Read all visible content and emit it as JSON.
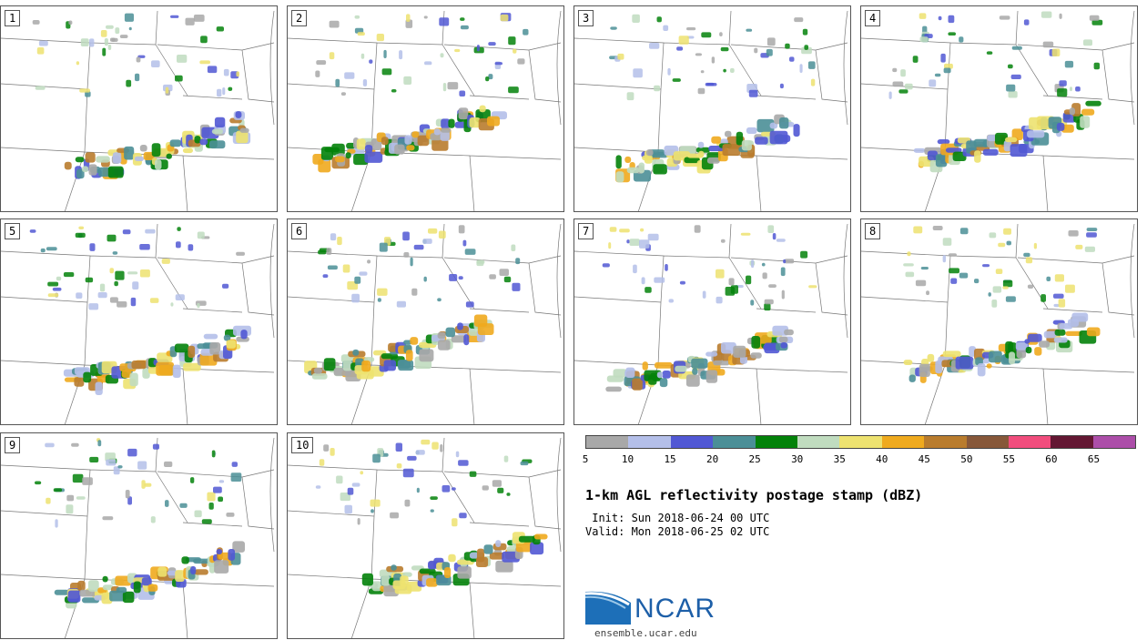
{
  "panels": [
    {
      "label": "1"
    },
    {
      "label": "2"
    },
    {
      "label": "3"
    },
    {
      "label": "4"
    },
    {
      "label": "5"
    },
    {
      "label": "6"
    },
    {
      "label": "7"
    },
    {
      "label": "8"
    },
    {
      "label": "9"
    },
    {
      "label": "10"
    }
  ],
  "colorbar": {
    "colors": [
      "#a8a8a8",
      "#b4bfe9",
      "#5158d4",
      "#4b8f97",
      "#03820a",
      "#c0dcbf",
      "#ede270",
      "#efaa1e",
      "#b97c2d",
      "#87583a",
      "#f14d7d",
      "#631733",
      "#ac4ea9"
    ],
    "labels": [
      "5",
      "10",
      "15",
      "20",
      "25",
      "30",
      "35",
      "40",
      "45",
      "50",
      "55",
      "60",
      "65"
    ]
  },
  "title": "1-km AGL reflectivity postage stamp (dBZ)",
  "init": " Init: Sun 2018-06-24 00 UTC",
  "valid": "Valid: Mon 2018-06-25 02 UTC",
  "logo": {
    "text": "NCAR",
    "site": "ensemble.ucar.edu",
    "color": "#1d5fa8"
  }
}
